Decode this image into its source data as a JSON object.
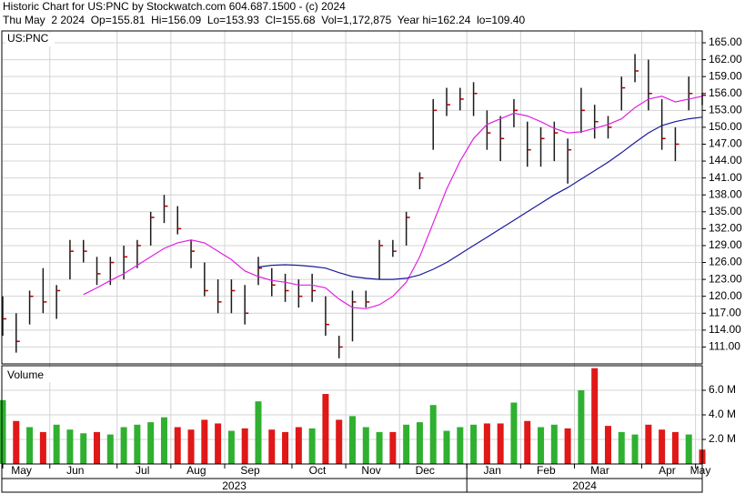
{
  "header": {
    "line1": "Historic Chart for US:PNC by Stockwatch.com 604.687.1500 - (c) 2024",
    "line2": "Thu May  2 2024  Op=155.81  Hi=156.09  Lo=153.93  Cl=155.68  Vol=1,172,875  Year hi=162.24  lo=109.40"
  },
  "chart_data": [
    {
      "type": "ohlc",
      "label": "US:PNC",
      "color": "#1a1a1a",
      "tick_color": "#b00000",
      "grid": true,
      "categories": [
        "May",
        null,
        null,
        null,
        "Jun",
        null,
        null,
        null,
        null,
        "Jul",
        null,
        null,
        null,
        "Aug",
        null,
        null,
        null,
        "Sep",
        null,
        null,
        null,
        null,
        "Oct",
        null,
        null,
        null,
        "Nov",
        null,
        null,
        null,
        "Dec",
        null,
        null,
        null,
        null,
        "Jan",
        null,
        null,
        null,
        "Feb",
        null,
        null,
        null,
        "Mar",
        null,
        null,
        null,
        null,
        "Apr",
        null,
        null,
        null,
        "May"
      ],
      "year_labels": [
        "2023",
        "2024"
      ],
      "high": [
        120,
        117,
        121,
        125,
        122,
        130,
        130,
        127,
        127,
        129,
        130,
        135,
        138,
        136,
        130,
        126,
        123,
        123,
        122,
        127,
        125,
        124,
        123,
        124,
        120,
        113,
        121,
        121,
        130,
        130,
        135,
        142,
        155,
        157,
        157,
        158,
        153,
        152,
        155,
        151,
        150,
        151,
        148,
        157,
        154,
        152,
        159,
        163,
        162,
        155,
        150,
        159,
        156.09
      ],
      "low": [
        113,
        110,
        115,
        117,
        116,
        123,
        126,
        122,
        122,
        123,
        125,
        129,
        133,
        131,
        125,
        120,
        117,
        117,
        115,
        122,
        120,
        119,
        118,
        119,
        113,
        109,
        112,
        118,
        123,
        127,
        129,
        139,
        146,
        152,
        153,
        152,
        146,
        144,
        150,
        143,
        143,
        144,
        140,
        149,
        148,
        148,
        153,
        158,
        153,
        146,
        144,
        153,
        153.93
      ],
      "close": [
        116,
        112,
        120,
        119,
        121,
        128,
        128,
        124,
        126,
        127,
        129,
        134,
        136,
        132,
        128,
        121,
        119,
        121,
        117,
        125,
        122,
        121,
        120,
        121,
        115,
        111,
        119,
        119,
        129,
        128,
        134,
        141,
        153,
        154,
        155,
        156,
        149,
        148,
        153,
        146,
        148,
        149,
        146,
        153,
        151,
        150,
        157,
        160,
        156,
        148,
        147,
        156,
        155.68
      ],
      "lines": [
        {
          "color": "#e020e0",
          "values": [
            null,
            null,
            null,
            null,
            null,
            null,
            120.3,
            121.5,
            122.8,
            124,
            125.5,
            127,
            128.5,
            129.5,
            130,
            129.5,
            128,
            126.5,
            124.5,
            123.5,
            122.8,
            122.5,
            122,
            122,
            121.5,
            119.5,
            118,
            117.8,
            118.5,
            120,
            122.5,
            127,
            133,
            139,
            144,
            148,
            150.5,
            151.5,
            152.5,
            152,
            151,
            149.8,
            149,
            149.2,
            149.8,
            150.5,
            151.5,
            153.5,
            155,
            155.5,
            154.5,
            155,
            155.5
          ]
        },
        {
          "color": "#1a1a9a",
          "values": [
            null,
            null,
            null,
            null,
            null,
            null,
            null,
            null,
            null,
            null,
            null,
            null,
            null,
            null,
            null,
            null,
            null,
            null,
            null,
            125.2,
            125.5,
            125.6,
            125.5,
            125.3,
            125,
            124.2,
            123.5,
            123.2,
            123,
            123,
            123.2,
            123.8,
            124.8,
            126,
            127.5,
            129,
            130.5,
            132,
            133.5,
            135,
            136.5,
            138,
            139.3,
            140.8,
            142.3,
            143.8,
            145.5,
            147.3,
            149,
            150.3,
            151,
            151.5,
            151.8
          ]
        }
      ],
      "ylim": [
        108,
        167.1
      ],
      "yticks": [
        {
          "value": 111,
          "label": "111.00"
        },
        {
          "value": 114,
          "label": "114.00"
        },
        {
          "value": 117,
          "label": "117.00"
        },
        {
          "value": 120,
          "label": "120.00"
        },
        {
          "value": 123,
          "label": "123.00"
        },
        {
          "value": 126,
          "label": "126.00"
        },
        {
          "value": 129,
          "label": "129.00"
        },
        {
          "value": 132,
          "label": "132.00"
        },
        {
          "value": 135,
          "label": "135.00"
        },
        {
          "value": 138,
          "label": "138.00"
        },
        {
          "value": 141,
          "label": "141.00"
        },
        {
          "value": 144,
          "label": "144.00"
        },
        {
          "value": 147,
          "label": "147.00"
        },
        {
          "value": 150,
          "label": "150.00"
        },
        {
          "value": 153,
          "label": "153.00"
        },
        {
          "value": 156,
          "label": "156.00"
        },
        {
          "value": 159,
          "label": "159.00"
        },
        {
          "value": 162,
          "label": "162.00"
        },
        {
          "value": 165,
          "label": "165.00"
        }
      ]
    },
    {
      "type": "bar",
      "label": "Volume",
      "up_color": "#30b030",
      "down_color": "#e01818",
      "values": [
        5.2,
        3.5,
        3.0,
        2.6,
        3.2,
        2.8,
        2.5,
        2.6,
        2.4,
        3.0,
        3.2,
        3.4,
        3.8,
        3.0,
        2.8,
        3.6,
        3.3,
        2.7,
        2.9,
        5.1,
        2.8,
        2.6,
        3.0,
        2.9,
        5.7,
        3.6,
        3.9,
        3.0,
        2.6,
        2.6,
        3.2,
        3.4,
        4.8,
        2.7,
        3.0,
        3.2,
        3.3,
        3.3,
        5.0,
        3.5,
        3.0,
        3.2,
        2.9,
        6.0,
        7.8,
        3.1,
        2.6,
        2.4,
        3.2,
        2.8,
        2.6,
        2.4,
        1.172875
      ],
      "ylim": [
        0,
        8
      ],
      "yticks": [
        {
          "value": 2,
          "label": "2.0 M"
        },
        {
          "value": 4,
          "label": "4.0 M"
        },
        {
          "value": 6,
          "label": "6.0 M"
        }
      ]
    }
  ]
}
